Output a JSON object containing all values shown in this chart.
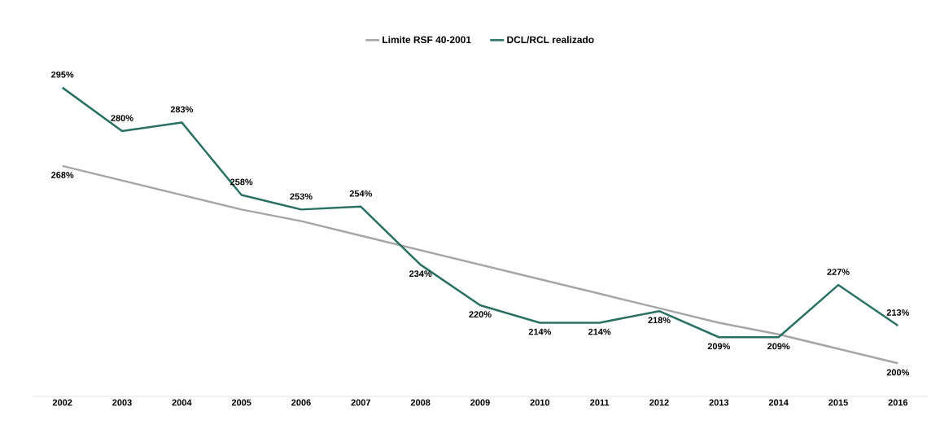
{
  "chart_data": {
    "type": "line",
    "categories": [
      "2002",
      "2003",
      "2004",
      "2005",
      "2006",
      "2007",
      "2008",
      "2009",
      "2010",
      "2011",
      "2012",
      "2013",
      "2014",
      "2015",
      "2016"
    ],
    "series": [
      {
        "name": "Limite RSF 40-2001",
        "color": "#a6a6a6",
        "values": [
          268,
          263,
          258,
          253,
          249,
          244,
          239,
          234,
          229,
          224,
          219,
          214,
          210,
          205,
          200
        ],
        "value_labels": [
          "268%",
          null,
          null,
          null,
          null,
          null,
          null,
          null,
          null,
          null,
          null,
          null,
          null,
          null,
          "200%"
        ]
      },
      {
        "name": "DCL/RCL realizado",
        "color": "#2b7163",
        "values": [
          295,
          280,
          283,
          258,
          253,
          254,
          234,
          220,
          214,
          214,
          218,
          209,
          209,
          227,
          213
        ],
        "value_labels": [
          "295%",
          "280%",
          "283%",
          "258%",
          "253%",
          "254%",
          "234%",
          "220%",
          "214%",
          "214%",
          "218%",
          "209%",
          "209%",
          "227%",
          "213%"
        ]
      }
    ],
    "legend": "top",
    "grid": false,
    "marker": "none",
    "line_style": "solid"
  }
}
